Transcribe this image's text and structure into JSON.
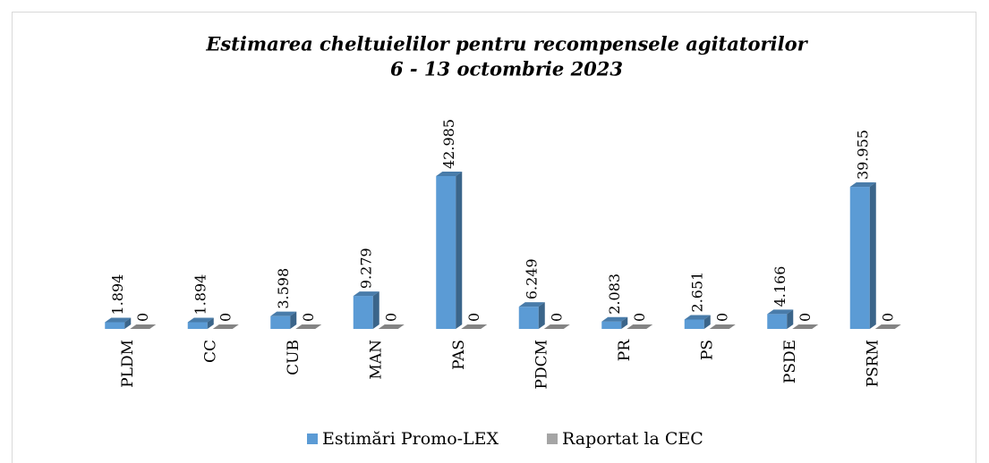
{
  "chart_data": {
    "type": "bar3d",
    "title": "Estimarea cheltuielilor pentru recompensele agitatorilor",
    "subtitle": "6 - 13 octombrie 2023",
    "categories": [
      "PLDM",
      "CC",
      "CUB",
      "MAN",
      "PAS",
      "PDCM",
      "PR",
      "PS",
      "PSDE",
      "PSRM"
    ],
    "series": [
      {
        "name": "Estimări Promo-LEX",
        "color": "#5b9bd5",
        "values": [
          1894,
          1894,
          3598,
          9279,
          42985,
          6249,
          2083,
          2651,
          4166,
          39955
        ],
        "value_labels": [
          "1.894",
          "1.894",
          "3.598",
          "9.279",
          "42.985",
          "6.249",
          "2.083",
          "2.651",
          "4.166",
          "39.955"
        ]
      },
      {
        "name": "Raportat la CEC",
        "color": "#a5a5a5",
        "values": [
          0,
          0,
          0,
          0,
          0,
          0,
          0,
          0,
          0,
          0
        ]
      }
    ],
    "legend": "bottom"
  }
}
